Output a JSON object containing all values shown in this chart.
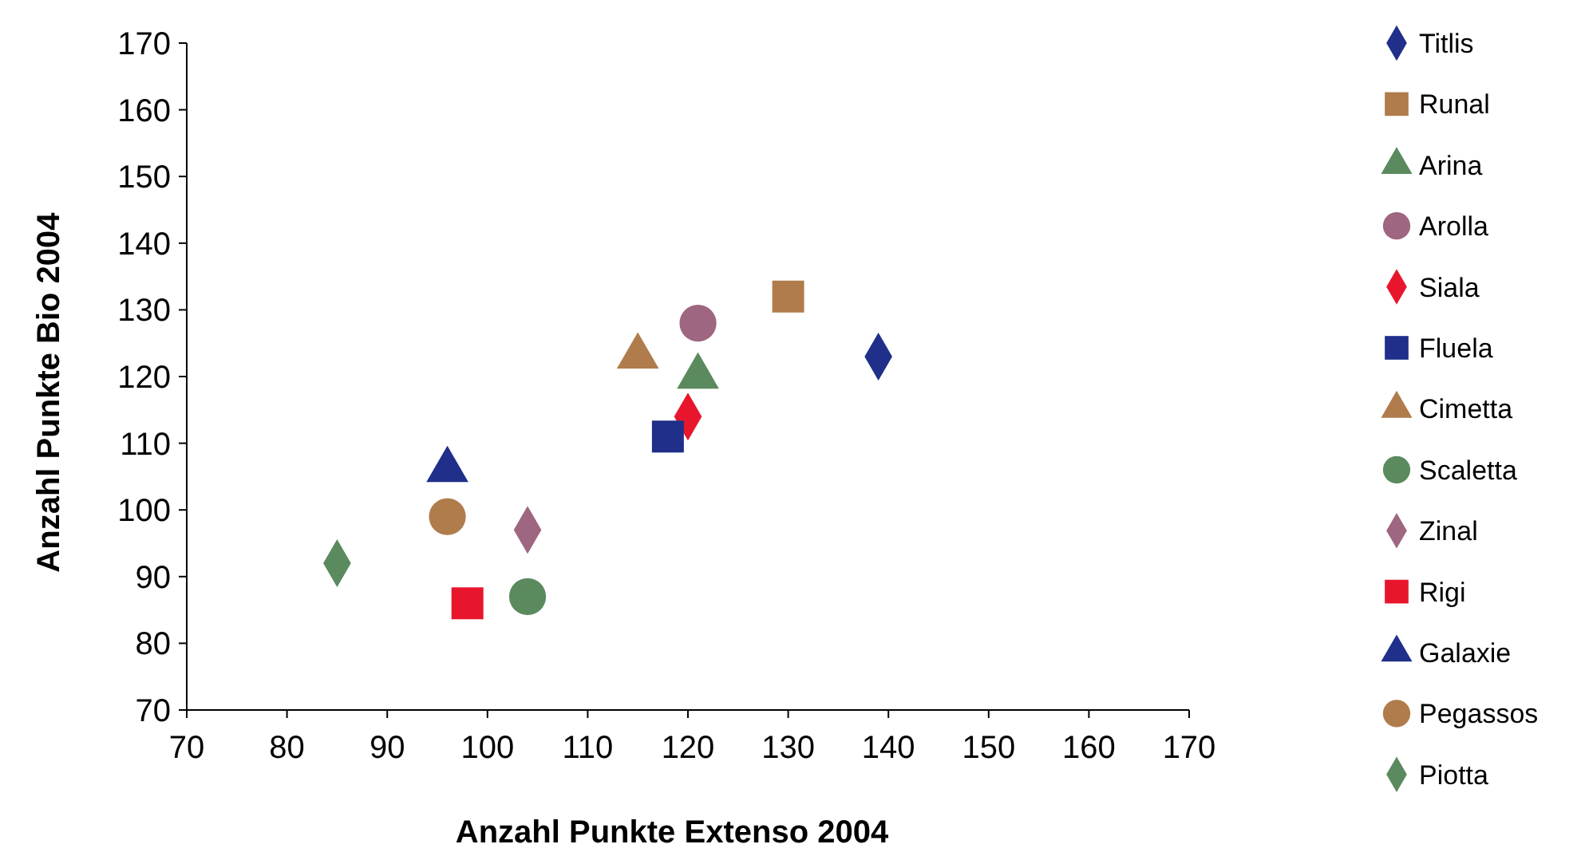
{
  "chart_data": {
    "type": "scatter",
    "xlabel": "Anzahl Punkte Extenso 2004",
    "ylabel": "Anzahl Punkte Bio 2004",
    "xlim": [
      70,
      170
    ],
    "ylim": [
      70,
      170
    ],
    "xticks": [
      70,
      80,
      90,
      100,
      110,
      120,
      130,
      140,
      150,
      160,
      170
    ],
    "yticks": [
      70,
      80,
      90,
      100,
      110,
      120,
      130,
      140,
      150,
      160,
      170
    ],
    "grid": false,
    "legend": "right",
    "series": [
      {
        "name": "Titlis",
        "color": "#1f2f8a",
        "marker": "diamond",
        "x": [
          139
        ],
        "values": [
          123
        ]
      },
      {
        "name": "Runal",
        "color": "#b07c4c",
        "marker": "square",
        "x": [
          130
        ],
        "values": [
          132
        ]
      },
      {
        "name": "Arina",
        "color": "#5a8a5e",
        "marker": "triangle",
        "x": [
          121
        ],
        "values": [
          120
        ]
      },
      {
        "name": "Arolla",
        "color": "#9e6680",
        "marker": "circle",
        "x": [
          121
        ],
        "values": [
          128
        ]
      },
      {
        "name": "Siala",
        "color": "#e8162c",
        "marker": "diamond",
        "x": [
          120
        ],
        "values": [
          114
        ]
      },
      {
        "name": "Fluela",
        "color": "#1f2f8a",
        "marker": "square",
        "x": [
          118
        ],
        "values": [
          111
        ]
      },
      {
        "name": "Cimetta",
        "color": "#b07c4c",
        "marker": "triangle",
        "x": [
          115
        ],
        "values": [
          123
        ]
      },
      {
        "name": "Scaletta",
        "color": "#5a8a5e",
        "marker": "circle",
        "x": [
          104
        ],
        "values": [
          87
        ]
      },
      {
        "name": "Zinal",
        "color": "#9e6680",
        "marker": "diamond",
        "x": [
          104
        ],
        "values": [
          97
        ]
      },
      {
        "name": "Rigi",
        "color": "#e8162c",
        "marker": "square",
        "x": [
          98
        ],
        "values": [
          86
        ]
      },
      {
        "name": "Galaxie",
        "color": "#1f2f8a",
        "marker": "triangle",
        "x": [
          96
        ],
        "values": [
          106
        ]
      },
      {
        "name": "Pegassos",
        "color": "#b07c4c",
        "marker": "circle",
        "x": [
          96
        ],
        "values": [
          99
        ]
      },
      {
        "name": "Piotta",
        "color": "#5a8a5e",
        "marker": "diamond",
        "x": [
          85
        ],
        "values": [
          92
        ]
      }
    ]
  }
}
